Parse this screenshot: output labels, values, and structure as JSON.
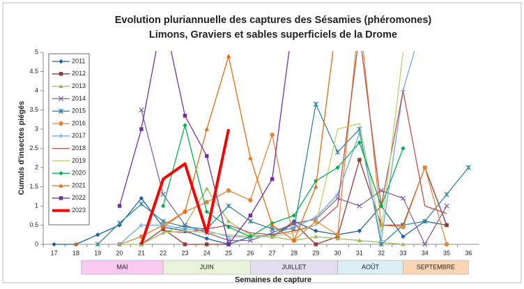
{
  "chart_data": {
    "type": "line",
    "title": "Evolution pluriannuelle des captures des Sésamies (phéromones)",
    "subtitle": "Limons, Graviers et sables superficiels de la Drome",
    "y_label": "Cumuls d'insectes piégés",
    "x_label": "Semaines de capture",
    "periods": [
      "MAI",
      "JUIN",
      "JUILLET",
      "AOÛT",
      "SEPTEMBRE"
    ],
    "categories": [
      "17",
      "18",
      "19",
      "20",
      "21",
      "22",
      "23",
      "24",
      "25",
      "26",
      "27",
      "28",
      "29",
      "30",
      "31",
      "32",
      "33",
      "34",
      "35",
      "36"
    ],
    "ylim": [
      0,
      5
    ],
    "yticks": [
      0,
      0.5,
      1,
      1.5,
      2,
      2.5,
      3,
      3.5,
      4,
      4.5,
      5
    ],
    "grid": false,
    "series": [
      {
        "name": "2011",
        "color": "#1f5fa5",
        "marker": "diamond",
        "values": [
          0,
          0,
          0.25,
          0.5,
          1.2,
          0.45,
          0.35,
          0.15,
          0,
          0.2,
          0.2,
          0.6,
          0.35,
          0.25,
          0.35,
          1.0,
          0.2,
          0.6,
          0.5,
          null
        ]
      },
      {
        "name": "2012",
        "color": "#953735",
        "marker": "square",
        "values": [
          null,
          null,
          null,
          null,
          0,
          0.4,
          0,
          0,
          0,
          null,
          0.2,
          0.55,
          0,
          0.2,
          2.2,
          0.5,
          0.5,
          2.0,
          0.5,
          null
        ]
      },
      {
        "name": "2013",
        "color": "#9bbb59",
        "marker": "triangle",
        "values": [
          null,
          null,
          null,
          0,
          0,
          0.3,
          0.5,
          1.45,
          0.6,
          0.25,
          0.2,
          0.1,
          0.2,
          0.15,
          0.1,
          0.05,
          0,
          null,
          null,
          null
        ]
      },
      {
        "name": "2014",
        "color": "#8064a2",
        "marker": "x",
        "values": [
          null,
          null,
          null,
          null,
          3.5,
          1.3,
          0.5,
          0.3,
          0.1,
          0.1,
          0.3,
          0.55,
          0.65,
          1.2,
          1.0,
          1.4,
          1.2,
          0,
          1.0,
          null
        ]
      },
      {
        "name": "2015",
        "color": "#31859c",
        "marker": "star",
        "values": [
          null,
          null,
          0,
          0.55,
          1.05,
          0.6,
          0.45,
          0.4,
          1.0,
          0.6,
          0.4,
          0.4,
          3.65,
          2.4,
          3.0,
          0,
          0.5,
          0.6,
          1.3,
          2.0
        ]
      },
      {
        "name": "2016",
        "color": "#e0873a",
        "marker": "circle",
        "values": [
          null,
          null,
          null,
          0,
          0.2,
          0.5,
          0.85,
          1.1,
          1.4,
          1.15,
          2.85,
          0.1,
          0.6,
          0.25,
          6,
          0.5,
          0.45,
          2.0,
          0,
          null
        ]
      },
      {
        "name": "2017",
        "color": "#6fa8dc",
        "marker": "plus",
        "values": [
          null,
          null,
          null,
          0,
          0.5,
          0.5,
          0.4,
          0.35,
          0.2,
          0.2,
          0.25,
          0.45,
          0.7,
          1.3,
          2.9,
          0.1,
          4.0,
          6,
          null,
          null
        ]
      },
      {
        "name": "2018",
        "color": "#c0504d",
        "marker": "none",
        "values": [
          null,
          null,
          null,
          null,
          null,
          0.35,
          0.3,
          0.4,
          0.5,
          0.3,
          0.25,
          0.35,
          0.5,
          1.0,
          5.5,
          1.0,
          4.0,
          1.0,
          0.8,
          null
        ]
      },
      {
        "name": "2019",
        "color": "#b3d36b",
        "marker": "none",
        "values": [
          null,
          null,
          null,
          null,
          null,
          0.3,
          0.35,
          0.3,
          0.25,
          0.2,
          0.2,
          0.3,
          0.5,
          3.0,
          3.15,
          0.3,
          5.0,
          null,
          null,
          null
        ]
      },
      {
        "name": "2020",
        "color": "#00b050",
        "marker": "diamond",
        "values": [
          null,
          null,
          null,
          null,
          null,
          1.0,
          3.1,
          0.85,
          0.45,
          0.2,
          0.55,
          0.75,
          1.65,
          2.0,
          2.65,
          1.0,
          2.5,
          null,
          null,
          null
        ]
      },
      {
        "name": "2021",
        "color": "#e46c0a",
        "marker": "triangle",
        "values": [
          null,
          0,
          null,
          null,
          null,
          0.45,
          0.85,
          3.0,
          4.9,
          2.25,
          0.5,
          0.1,
          1.5,
          6,
          null,
          null,
          null,
          null,
          null,
          null
        ]
      },
      {
        "name": "2022",
        "color": "#7030a0",
        "marker": "square",
        "values": [
          null,
          null,
          null,
          1.0,
          3.0,
          6,
          3.35,
          2.3,
          0,
          0.75,
          1.7,
          6,
          null,
          null,
          null,
          null,
          null,
          null,
          null,
          null
        ]
      },
      {
        "name": "2023",
        "color": "#ff0000",
        "marker": "none",
        "width": 4,
        "values": [
          null,
          null,
          null,
          null,
          0,
          1.7,
          2.1,
          0.3,
          3.0,
          null,
          null,
          null,
          null,
          null,
          null,
          null,
          null,
          null,
          null,
          null
        ]
      }
    ]
  }
}
